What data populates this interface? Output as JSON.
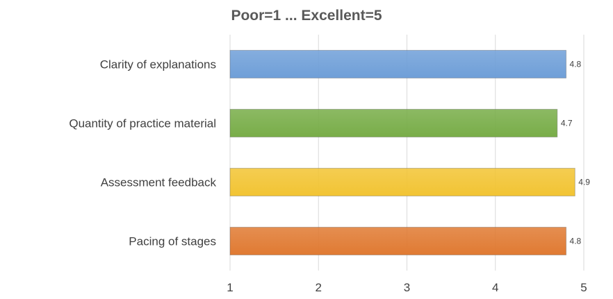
{
  "chart_data": {
    "type": "bar",
    "orientation": "horizontal",
    "title": "Poor=1 ... Excellent=5",
    "categories": [
      "Clarity of explanations",
      "Quantity of practice material",
      "Assessment feedback",
      "Pacing of stages"
    ],
    "values": [
      4.8,
      4.7,
      4.9,
      4.8
    ],
    "data_labels": [
      "4.8",
      "4.7",
      "4.9",
      "4.8"
    ],
    "bar_colors": [
      "#6f9fd8",
      "#78ad48",
      "#f2c433",
      "#e07a32"
    ],
    "xlim": [
      1,
      5
    ],
    "x_ticks": [
      "1",
      "2",
      "3",
      "4",
      "5"
    ],
    "xlabel": "",
    "ylabel": "",
    "grid": "vertical",
    "legend": "none"
  }
}
